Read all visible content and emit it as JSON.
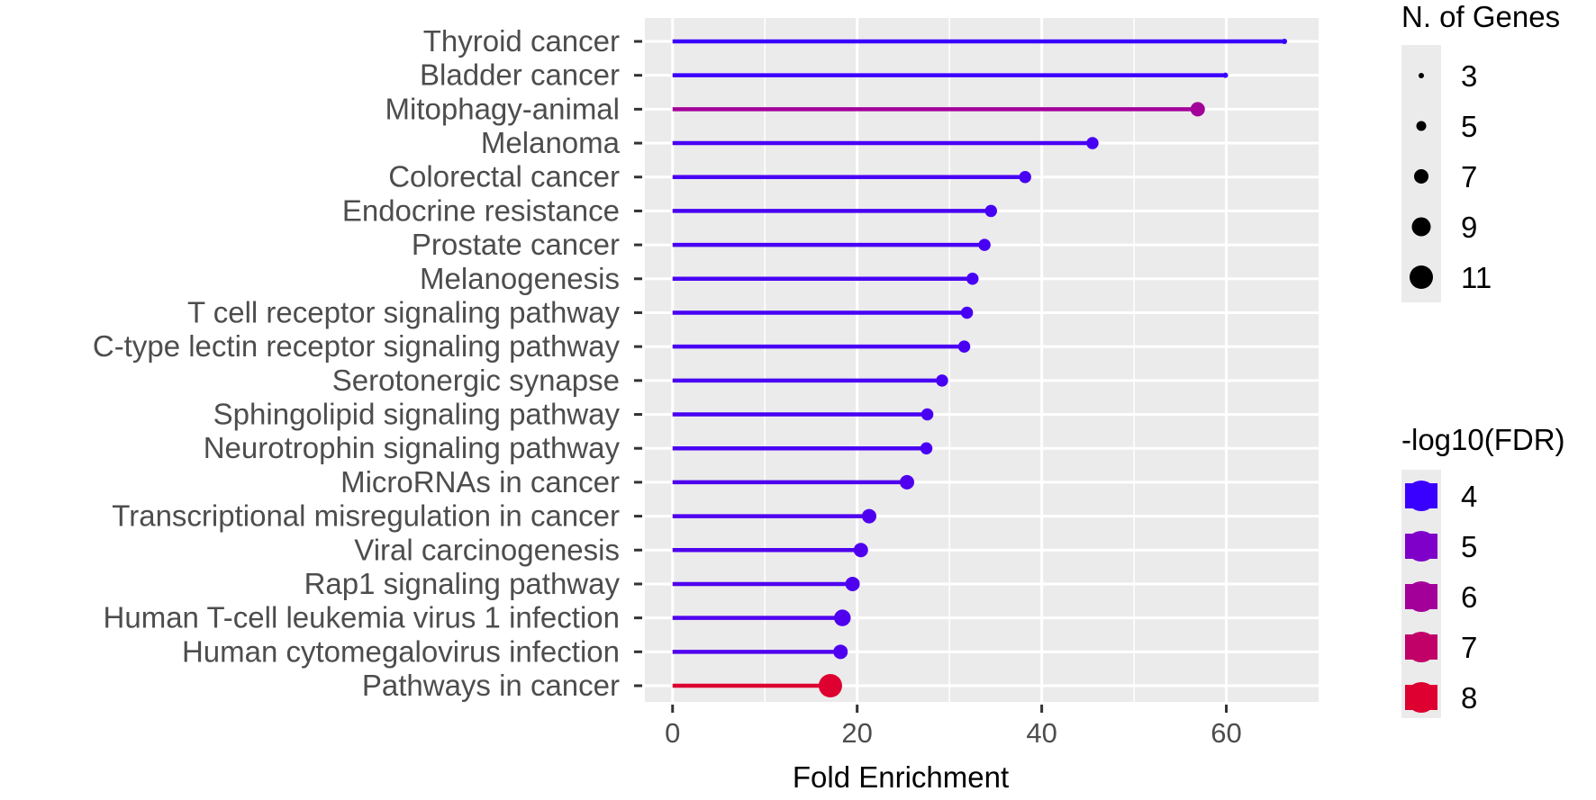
{
  "chart_data": {
    "type": "lollipop",
    "title": "",
    "xlabel": "Fold Enrichment",
    "ylabel": "",
    "xlim": [
      -3,
      70
    ],
    "x_ticks": [
      0,
      20,
      40,
      60
    ],
    "x_minor_ticks": [
      10,
      30,
      50
    ],
    "grid": true,
    "categories": [
      "Thyroid cancer",
      "Bladder cancer",
      "Mitophagy-animal",
      "Melanoma",
      "Colorectal cancer",
      "Endocrine resistance",
      "Prostate cancer",
      "Melanogenesis",
      "T cell receptor signaling pathway",
      "C-type lectin receptor signaling pathway",
      "Serotonergic synapse",
      "Sphingolipid signaling pathway",
      "Neurotrophin signaling pathway",
      "MicroRNAs in cancer",
      "Transcriptional misregulation in cancer",
      "Viral carcinogenesis",
      "Rap1 signaling pathway",
      "Human T-cell leukemia virus 1 infection",
      "Human cytomegalovirus infection",
      "Pathways in cancer"
    ],
    "fold_enrichment": [
      66.3,
      59.9,
      56.9,
      45.5,
      38.2,
      34.5,
      33.8,
      32.5,
      31.9,
      31.6,
      29.2,
      27.6,
      27.5,
      25.4,
      21.3,
      20.4,
      19.5,
      18.4,
      18.2,
      17.1
    ],
    "n_genes": [
      3,
      3,
      7,
      6,
      6,
      6,
      6,
      6,
      6,
      6,
      6,
      6,
      6,
      7,
      7,
      7,
      7,
      8,
      7,
      11
    ],
    "neg_log10_fdr": [
      4.0,
      4.0,
      6.0,
      4.2,
      4.2,
      4.2,
      4.2,
      4.2,
      4.2,
      4.2,
      4.2,
      4.2,
      4.2,
      4.3,
      4.3,
      4.3,
      4.3,
      4.3,
      4.3,
      8.0
    ],
    "size_legend": {
      "title": "N. of Genes",
      "values": [
        "3",
        "5",
        "7",
        "9",
        "11"
      ]
    },
    "color_legend": {
      "title": "-log10(FDR)",
      "values": [
        "4",
        "5",
        "6",
        "7",
        "8"
      ],
      "colors": [
        "#3a00ff",
        "#7f00c8",
        "#a3009a",
        "#c10068",
        "#dd0030"
      ]
    },
    "colors": {
      "panel_bg": "#ebebeb",
      "grid_major": "#ffffff",
      "low": "#3a00ff",
      "high": "#dd0020"
    }
  }
}
